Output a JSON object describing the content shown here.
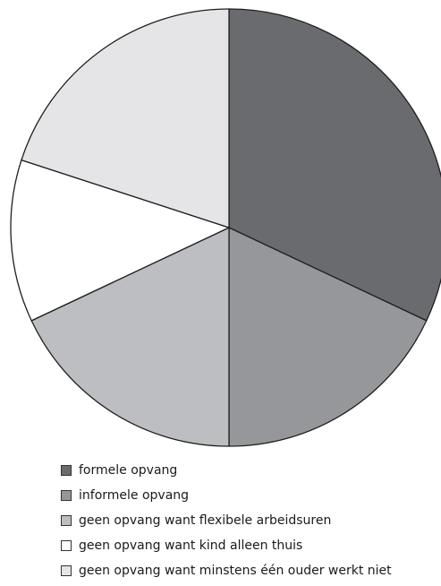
{
  "chart_data": {
    "type": "pie",
    "title": "",
    "legend_position": "bottom",
    "start_angle_deg": 0,
    "direction": "clockwise",
    "slices": [
      {
        "label": "formele opvang",
        "value": 32,
        "color": "#6a6b6e"
      },
      {
        "label": "informele opvang",
        "value": 18,
        "color": "#96979a"
      },
      {
        "label": "geen opvang want flexibele arbeidsuren",
        "value": 18,
        "color": "#bdbec1"
      },
      {
        "label": "geen opvang want kind alleen thuis",
        "value": 12,
        "color": "#ffffff"
      },
      {
        "label": "geen opvang want minstens één ouder werkt niet",
        "value": 20,
        "color": "#e5e5e7"
      }
    ]
  },
  "legend": {
    "items": [
      {
        "label": "formele opvang",
        "color": "#6a6b6e"
      },
      {
        "label": "informele opvang",
        "color": "#96979a"
      },
      {
        "label": "geen opvang want flexibele arbeidsuren",
        "color": "#bdbec1"
      },
      {
        "label": "geen opvang want kind alleen thuis",
        "color": "#ffffff"
      },
      {
        "label": "geen opvang want minstens één ouder werkt niet",
        "color": "#e5e5e7"
      }
    ]
  }
}
